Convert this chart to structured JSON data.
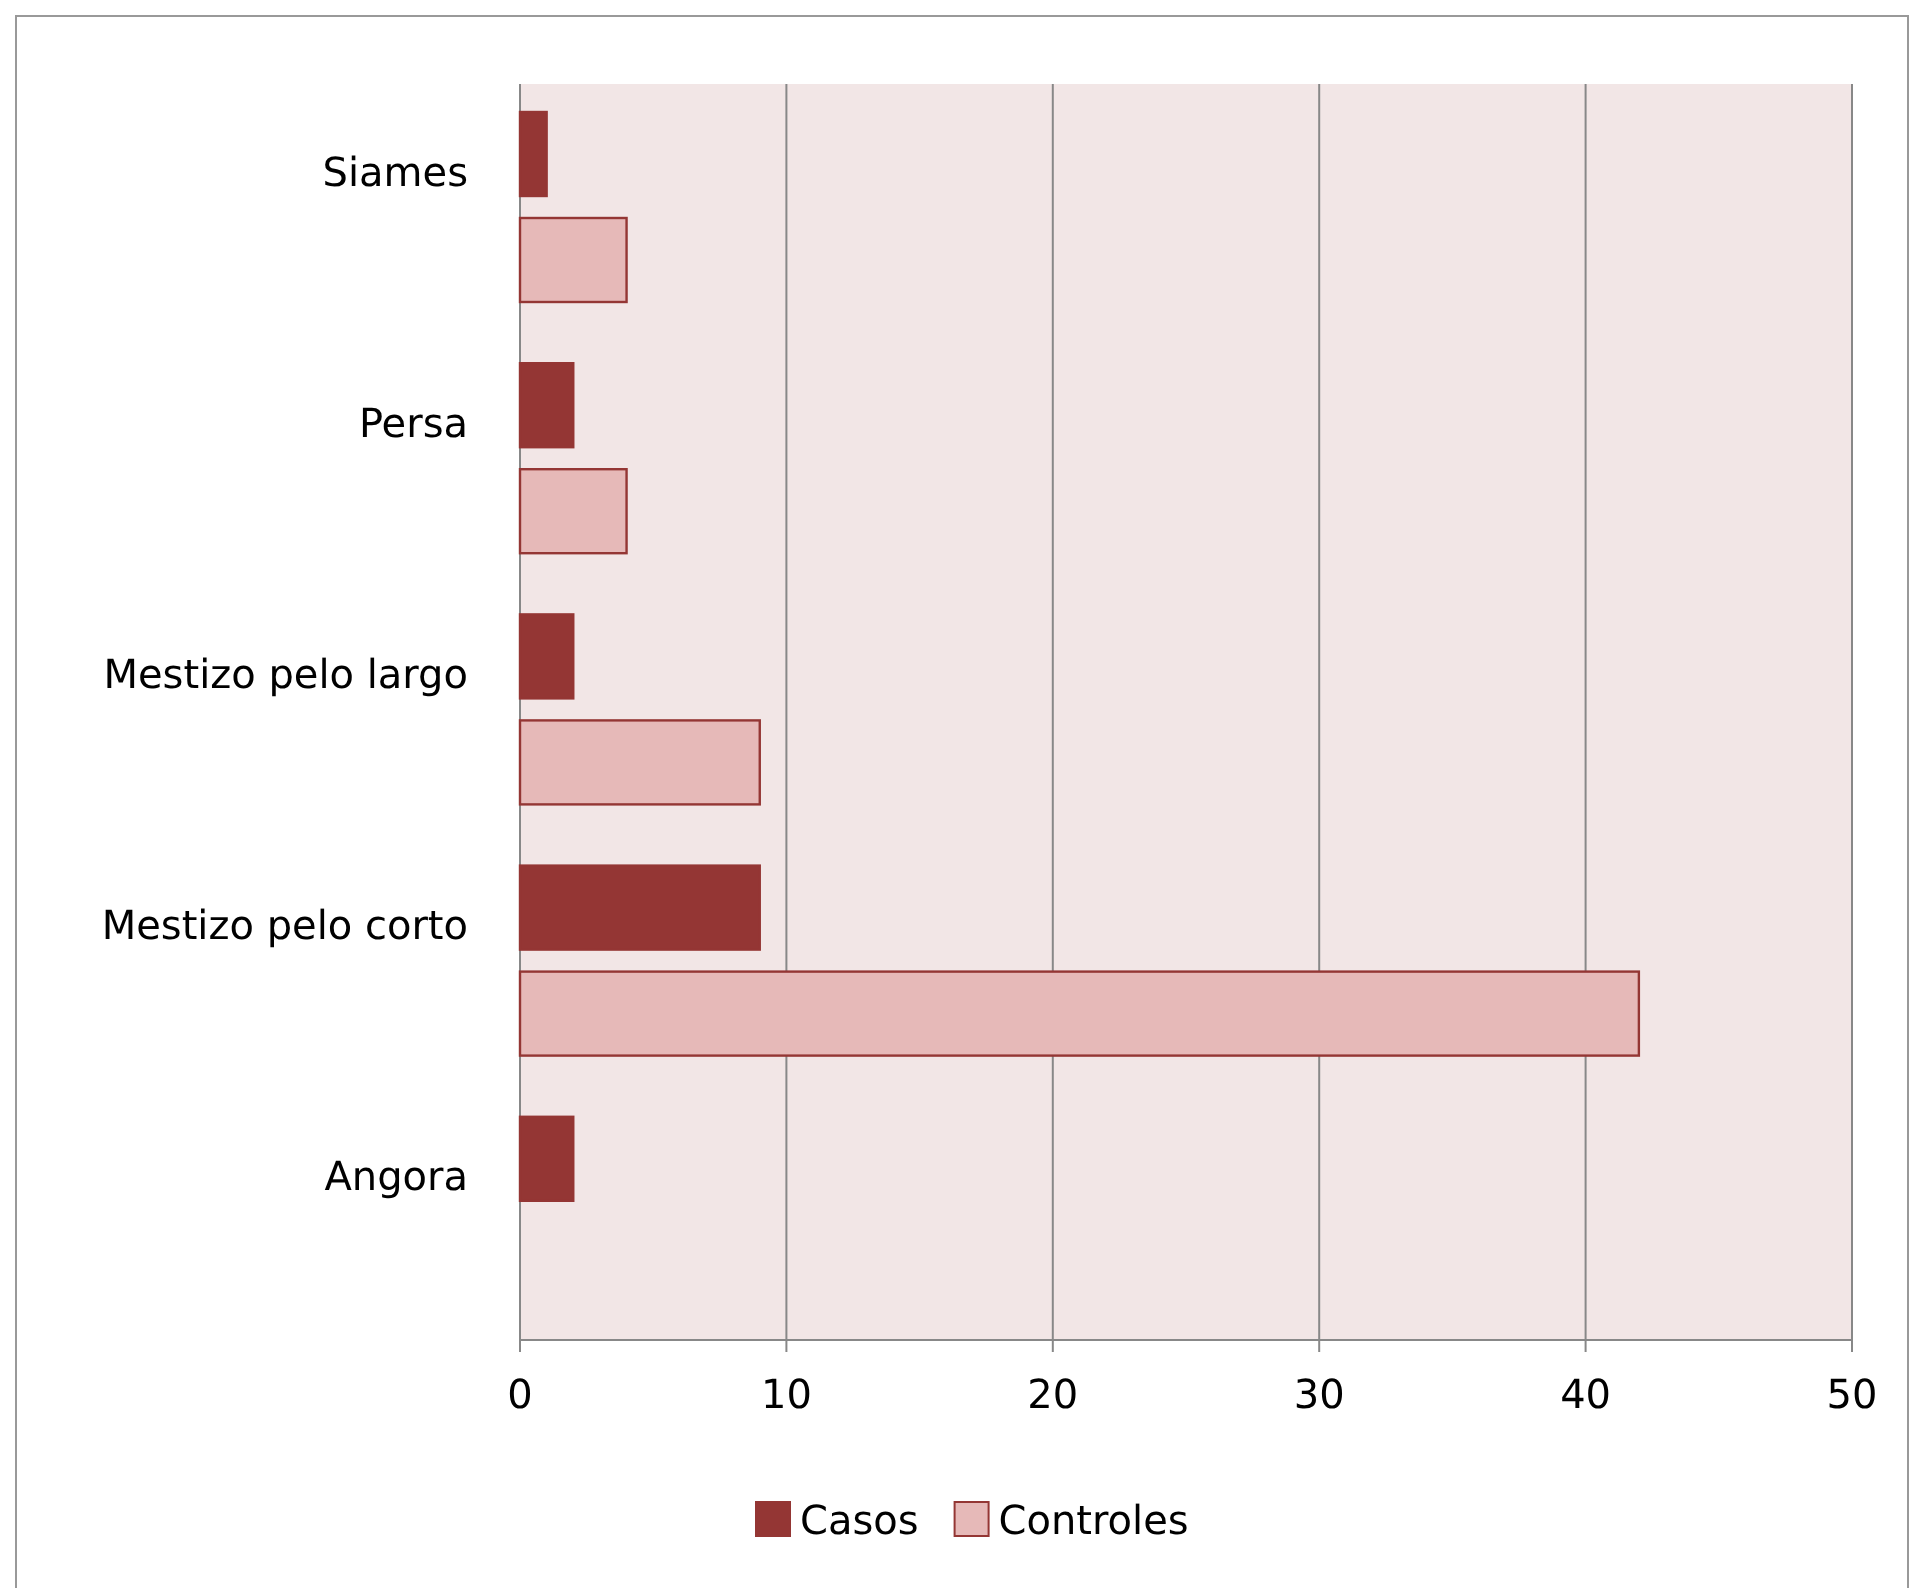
{
  "chart_data": {
    "type": "bar",
    "orientation": "horizontal",
    "categories": [
      "Siames",
      "Persa",
      "Mestizo pelo largo",
      "Mestizo pelo corto",
      "Angora"
    ],
    "series": [
      {
        "name": "Casos",
        "color": "#943634",
        "values": [
          1,
          2,
          2,
          9,
          2
        ]
      },
      {
        "name": "Controles",
        "color": "#e6b9b8",
        "values": [
          4,
          4,
          9,
          42,
          0
        ]
      }
    ],
    "xlim": [
      0,
      50
    ],
    "xticks": [
      0,
      10,
      20,
      30,
      40,
      50
    ],
    "grid": "x",
    "legend": "bottom"
  }
}
